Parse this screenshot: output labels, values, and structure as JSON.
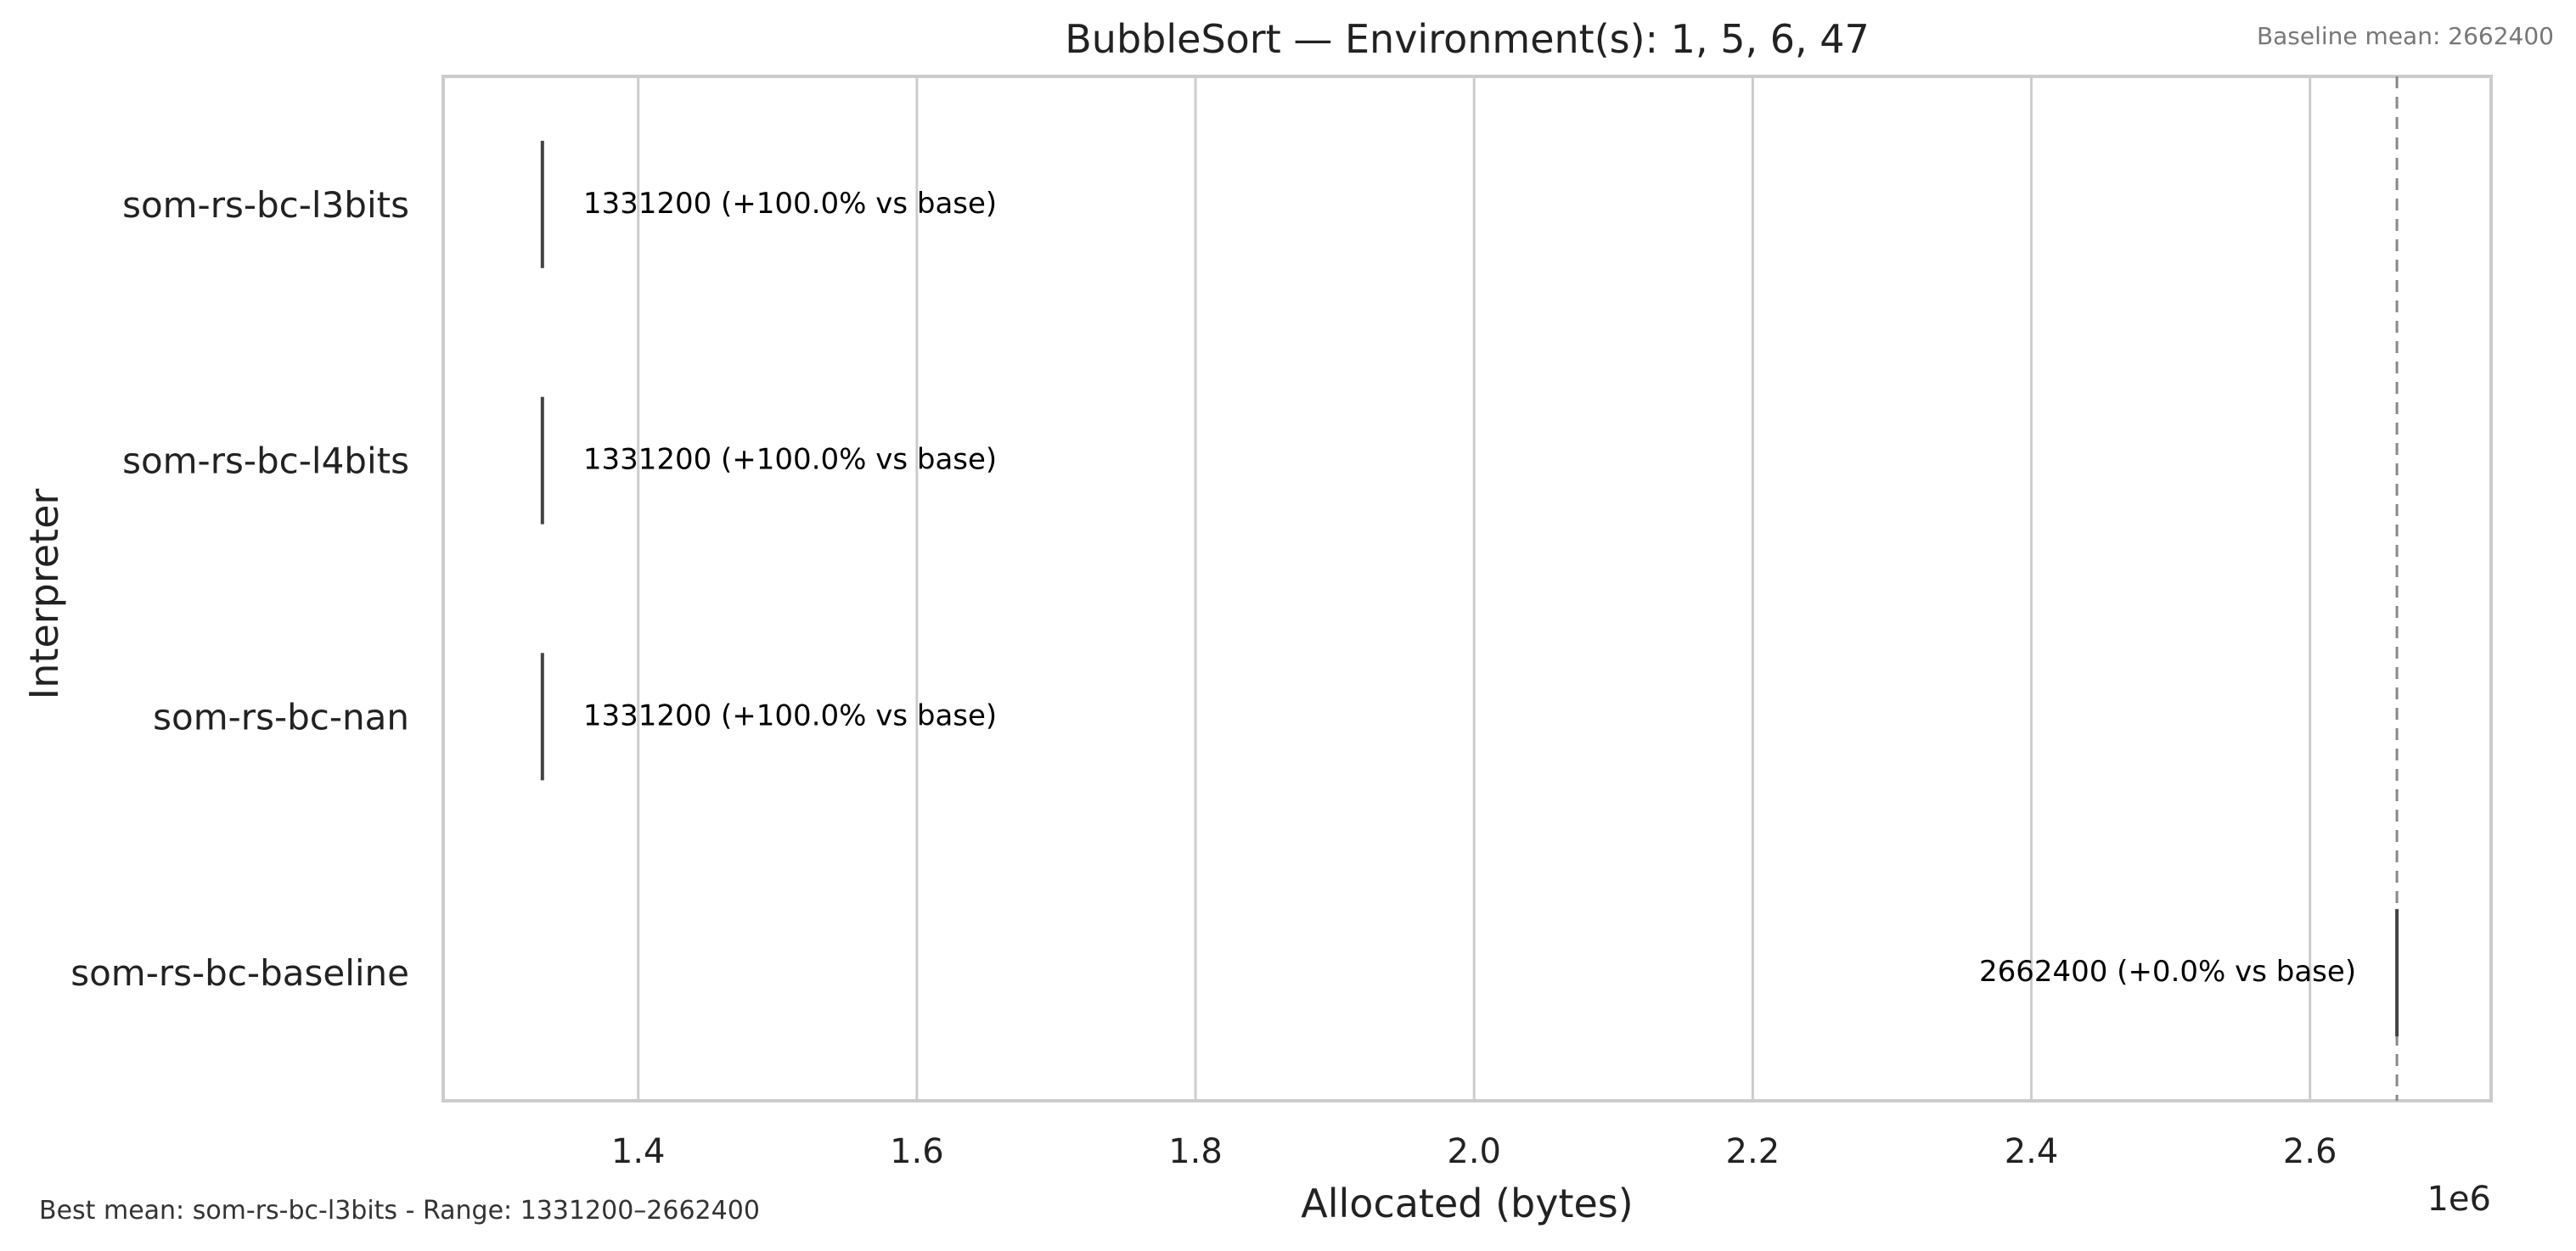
{
  "chart_data": {
    "type": "box",
    "orientation": "horizontal",
    "title": "BubbleSort — Environment(s): 1, 5, 6, 47",
    "xlabel": "Allocated (bytes)",
    "ylabel": "Interpreter",
    "x_offset_label": "1e6",
    "xlim": [
      1.26,
      2.73
    ],
    "x_ticks": [
      1.4,
      1.6,
      1.8,
      2.0,
      2.2,
      2.4,
      2.6
    ],
    "x_tick_labels": [
      "1.4",
      "1.6",
      "1.8",
      "2.0",
      "2.2",
      "2.4",
      "2.6"
    ],
    "grid": "vertical",
    "baseline": {
      "value": 2662400,
      "label": "Baseline mean: 2662400",
      "style": "dashed"
    },
    "categories": [
      "som-rs-bc-l3bits",
      "som-rs-bc-l4bits",
      "som-rs-bc-nan",
      "som-rs-bc-baseline"
    ],
    "values": [
      1331200,
      1331200,
      1331200,
      2662400
    ],
    "annotations": [
      "1331200  (+100.0% vs base)",
      "1331200  (+100.0% vs base)",
      "1331200  (+100.0% vs base)",
      "2662400  (+0.0% vs base)"
    ],
    "footer": "Best mean: som-rs-bc-l3bits - Range: 1331200–2662400",
    "colors": {
      "axis": "#cccccc",
      "grid": "#cccccc",
      "mark": "#444444",
      "baseline": "#888888",
      "text": "#222222"
    }
  }
}
